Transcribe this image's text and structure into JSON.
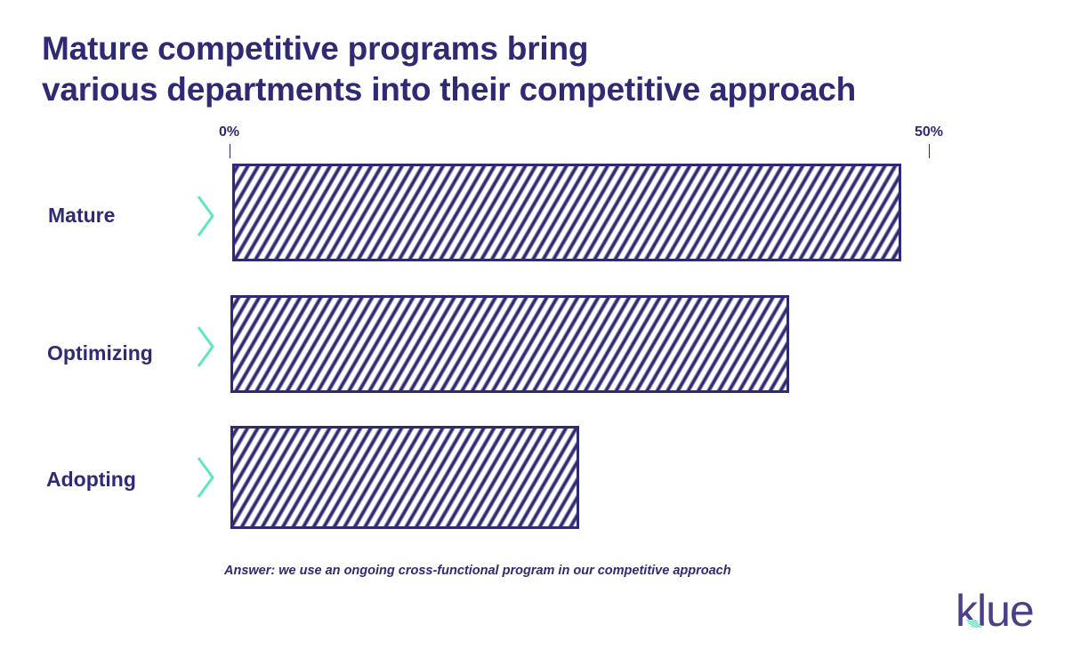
{
  "title": {
    "line1": "Mature competitive programs bring",
    "line2": "various departments into their competitive approach"
  },
  "axis": {
    "min_label": "0%",
    "max_label": "50%"
  },
  "rows": [
    {
      "label": "Mature",
      "value": 48
    },
    {
      "label": "Optimizing",
      "value": 40
    },
    {
      "label": "Adopting",
      "value": 25
    }
  ],
  "footnote": "Answer: we use an ongoing cross-functional program in our competitive approach",
  "logo": "klue",
  "colors": {
    "primary": "#2e2a73",
    "accent": "#5ee6c3",
    "logo": "#4b3f8a",
    "background": "#ffffff"
  },
  "chart_data": {
    "type": "bar",
    "orientation": "horizontal",
    "title": "Mature competitive programs bring various departments into their competitive approach",
    "categories": [
      "Mature",
      "Optimizing",
      "Adopting"
    ],
    "values": [
      48,
      40,
      25
    ],
    "xlabel": "",
    "ylabel": "",
    "xlim": [
      0,
      50
    ],
    "tick_labels": [
      "0%",
      "50%"
    ],
    "grid": false,
    "legend": null,
    "annotation": "Answer: we use an ongoing cross-functional program in our competitive approach",
    "bar_style": "diagonal hatched, navy outline"
  }
}
